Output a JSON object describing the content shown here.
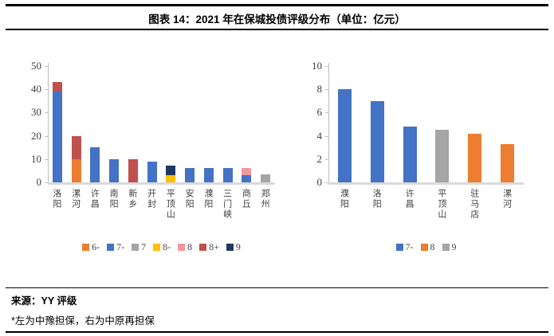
{
  "title": "图表 14：2021 年在保城投债评级分布（单位：亿元）",
  "footer": {
    "source": "来源：YY 评级",
    "note": "*左为中豫担保，右为中原再担保"
  },
  "colors": {
    "blue": "#4472C4",
    "orange": "#ED7D31",
    "gray": "#A5A5A5",
    "yellow": "#FFC000",
    "pink": "#F2989B",
    "brick": "#C0504D",
    "navy": "#1F3864",
    "axis": "#BFBFBF",
    "baseline": "#D9D9D9",
    "rule": "#000000"
  },
  "chart_data": [
    {
      "type": "bar",
      "stacked": true,
      "title": "",
      "categories": [
        "洛阳",
        "漯河",
        "许昌",
        "南阳",
        "新乡",
        "开封",
        "平顶山",
        "安阳",
        "濮阳",
        "三门峡",
        "商丘",
        "郑州"
      ],
      "series": [
        {
          "name": "6-",
          "color": "#ED7D31",
          "values": [
            0,
            10,
            0,
            0,
            0,
            0,
            0,
            0,
            0,
            0,
            0,
            0
          ]
        },
        {
          "name": "7-",
          "color": "#4472C4",
          "values": [
            39,
            0,
            15,
            10,
            0,
            9,
            0,
            6,
            6,
            6,
            3,
            0
          ]
        },
        {
          "name": "7",
          "color": "#A5A5A5",
          "values": [
            0,
            0,
            0,
            0,
            0,
            0,
            0,
            0,
            0,
            0,
            0,
            3.5
          ]
        },
        {
          "name": "8-",
          "color": "#FFC000",
          "values": [
            0,
            0,
            0,
            0,
            0,
            0,
            3,
            0,
            0,
            0,
            0,
            0
          ]
        },
        {
          "name": "8",
          "color": "#F2989B",
          "values": [
            0,
            0,
            0,
            0,
            0,
            0,
            0,
            0,
            0,
            0,
            3,
            0
          ]
        },
        {
          "name": "8+",
          "color": "#C0504D",
          "values": [
            4,
            10,
            0,
            0,
            10,
            0,
            0,
            0,
            0,
            0,
            0,
            0
          ]
        },
        {
          "name": "9",
          "color": "#1F3864",
          "values": [
            0,
            0,
            0,
            0,
            0,
            0,
            4.3,
            0,
            0,
            0,
            0,
            0
          ]
        }
      ],
      "ylim": [
        0,
        50
      ],
      "yticks": [
        0,
        10,
        20,
        30,
        40,
        50
      ],
      "grid": false,
      "legend_position": "bottom",
      "category_label_orientation": "vertical"
    },
    {
      "type": "bar",
      "stacked": false,
      "title": "",
      "categories": [
        "濮阳",
        "洛阳",
        "许昌",
        "平顶山",
        "驻马店",
        "漯河"
      ],
      "series": [
        {
          "name": "7-",
          "color": "#4472C4",
          "values": [
            8,
            7,
            4.8,
            0,
            0,
            0
          ]
        },
        {
          "name": "8",
          "color": "#ED7D31",
          "values": [
            0,
            0,
            0,
            0,
            4.2,
            3.3
          ]
        },
        {
          "name": "9",
          "color": "#A5A5A5",
          "values": [
            0,
            0,
            0,
            4.5,
            0,
            0
          ]
        }
      ],
      "ylim": [
        0,
        10
      ],
      "yticks": [
        0,
        2,
        4,
        6,
        8,
        10
      ],
      "grid": false,
      "legend_position": "bottom",
      "category_label_orientation": "vertical"
    }
  ]
}
